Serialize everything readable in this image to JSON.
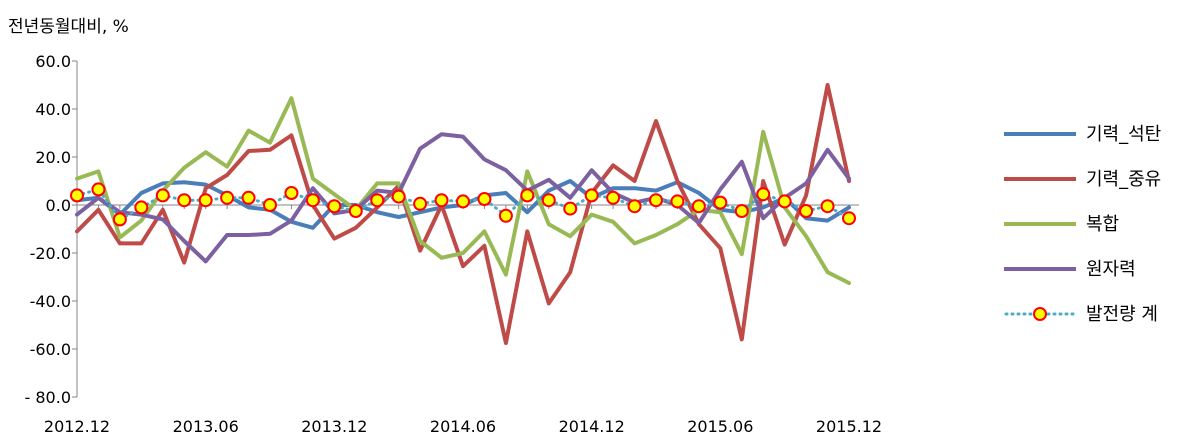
{
  "chart_data": {
    "type": "line",
    "title": "",
    "ylabel": "전년동월대비, %",
    "xlabel": "",
    "ylim": [
      -80,
      60
    ],
    "yticks": [
      60,
      40,
      20,
      0,
      -20,
      -40,
      -60,
      -80
    ],
    "ytick_labels": [
      "60.0",
      "40.0",
      "20.0",
      "0.0",
      "-20.0",
      "-40.0",
      "-60.0",
      "- 80.0"
    ],
    "x": [
      "2012.12",
      "2013.01",
      "2013.02",
      "2013.03",
      "2013.04",
      "2013.05",
      "2013.06",
      "2013.07",
      "2013.08",
      "2013.09",
      "2013.10",
      "2013.11",
      "2013.12",
      "2014.01",
      "2014.02",
      "2014.03",
      "2014.04",
      "2014.05",
      "2014.06",
      "2014.07",
      "2014.08",
      "2014.09",
      "2014.10",
      "2014.11",
      "2014.12",
      "2015.01",
      "2015.02",
      "2015.03",
      "2015.04",
      "2015.05",
      "2015.06",
      "2015.07",
      "2015.08",
      "2015.09",
      "2015.10",
      "2015.11",
      "2015.12"
    ],
    "xtick_labels": [
      "2012.12",
      "2013.06",
      "2013.12",
      "2014.06",
      "2014.12",
      "2015.06",
      "2015.12"
    ],
    "grid": false,
    "legend_position": "right",
    "series": [
      {
        "name": "기력_석탄",
        "color": "#4a7ebb",
        "style": "line",
        "values": [
          2,
          3,
          -4,
          5,
          9,
          9.5,
          8.5,
          4,
          -1,
          -2,
          -7,
          -9.5,
          0,
          0,
          -3,
          -5,
          -3,
          -1,
          0,
          4,
          5,
          -3,
          6,
          10,
          3,
          7,
          7,
          6,
          9.5,
          5,
          -2,
          -3,
          -1,
          3,
          -5.5,
          -6.5,
          -1
        ]
      },
      {
        "name": "기력_중유",
        "color": "#be4b48",
        "style": "line",
        "values": [
          -11,
          -2,
          -16,
          -16,
          -2,
          -24,
          7,
          12.5,
          22.5,
          23,
          29,
          0,
          -14,
          -9.5,
          -1,
          8,
          -19,
          0,
          -25.5,
          -17,
          -57.5,
          -11,
          -41,
          -28,
          5,
          16.5,
          10,
          35,
          10,
          -8,
          -18,
          -56,
          10,
          -16.5,
          4,
          50,
          10
        ]
      },
      {
        "name": "복합",
        "color": "#98b954",
        "style": "line",
        "values": [
          11,
          14,
          -13.5,
          -6.5,
          6,
          15.5,
          22,
          16,
          31,
          26,
          44.5,
          11,
          4.5,
          -2,
          9,
          9,
          -15,
          -22,
          -20,
          -11,
          -29,
          14,
          -8,
          -13,
          -4,
          -7,
          -16,
          -12.5,
          -8,
          -2,
          -3,
          -20.5,
          30.5,
          -1,
          -13,
          -28,
          -32.5
        ]
      },
      {
        "name": "원자력",
        "color": "#7d60a0",
        "style": "line",
        "values": [
          -4,
          3,
          -3,
          -4,
          -6,
          -15,
          -23.5,
          -12.5,
          -12.5,
          -12,
          -6.5,
          7,
          -3.5,
          -2,
          6,
          5,
          23.5,
          29.5,
          28.5,
          19,
          14.5,
          6,
          10.5,
          3,
          14.5,
          5,
          1,
          3,
          0,
          -7.5,
          6.5,
          18,
          -5.5,
          3,
          9,
          23,
          11
        ]
      },
      {
        "name": "발전량 계",
        "color": "#4bacc6",
        "style": "dots-markers",
        "marker_fill": "#ffff00",
        "marker_edge": "#ff0000",
        "values": [
          4,
          6.5,
          -6,
          -1,
          4,
          2,
          2,
          3,
          3,
          0,
          5,
          2,
          -0.5,
          -2.5,
          2,
          3.5,
          0.5,
          2,
          1.5,
          2.5,
          -4.5,
          4,
          2,
          -1.5,
          4,
          3,
          -0.5,
          2,
          1.5,
          -0.5,
          1,
          -2.5,
          4.5,
          1.5,
          -2.5,
          -0.5,
          -5.5
        ]
      }
    ]
  }
}
